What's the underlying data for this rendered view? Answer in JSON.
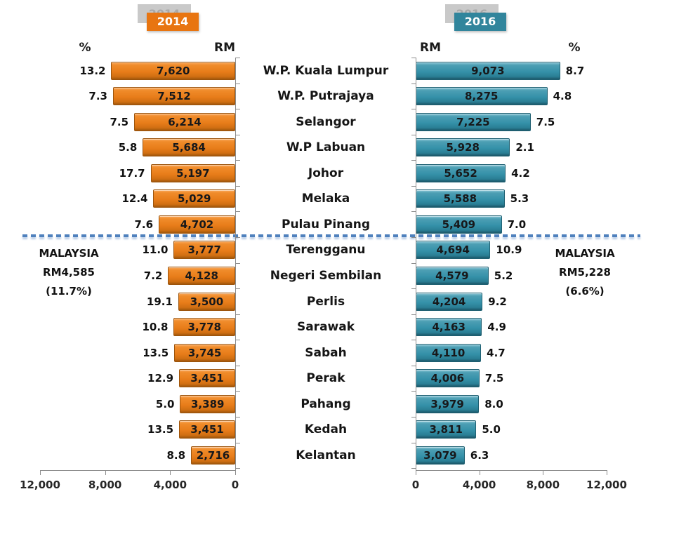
{
  "title_badges": {
    "left": {
      "label": "2014",
      "shadow_label": "2014",
      "color": "#E87511"
    },
    "right": {
      "label": "2016",
      "shadow_label": "2016",
      "color": "#31859C"
    }
  },
  "column_headers": {
    "left_pct": "%",
    "left_rm": "RM",
    "right_rm": "RM",
    "right_pct": "%"
  },
  "annotations": {
    "left": {
      "lines": [
        "MALAYSIA",
        "RM4,585",
        "(11.7%)"
      ]
    },
    "right": {
      "lines": [
        "MALAYSIA",
        "RM5,228",
        "(6.6%)"
      ]
    }
  },
  "colors": {
    "bar_2014": "#E87D1E",
    "bar_2016": "#3591A9",
    "divider": "#4F81BD",
    "axis": "#8C8C8C"
  },
  "chart_data": {
    "type": "bar",
    "layout": "tornado",
    "categories": [
      "W.P. Kuala Lumpur",
      "W.P. Putrajaya",
      "Selangor",
      "W.P Labuan",
      "Johor",
      "Melaka",
      "Pulau Pinang",
      "Terengganu",
      "Negeri Sembilan",
      "Perlis",
      "Sarawak",
      "Sabah",
      "Perak",
      "Pahang",
      "Kedah",
      "Kelantan"
    ],
    "series": [
      {
        "name": "2014",
        "side": "left",
        "color": "#E87D1E",
        "values": [
          7620,
          7512,
          6214,
          5684,
          5197,
          5029,
          4702,
          3777,
          4128,
          3500,
          3778,
          3745,
          3451,
          3389,
          3451,
          2716
        ],
        "value_labels": [
          "7,620",
          "7,512",
          "6,214",
          "5,684",
          "5,197",
          "5,029",
          "4,702",
          "3,777",
          "4,128",
          "3,500",
          "3,778",
          "3,745",
          "3,451",
          "3,389",
          "3,451",
          "2,716"
        ],
        "pct_values": [
          13.2,
          7.3,
          7.5,
          5.8,
          17.7,
          12.4,
          7.6,
          11.0,
          7.2,
          19.1,
          10.8,
          13.5,
          12.9,
          5.0,
          13.5,
          8.8
        ],
        "pct_labels": [
          "13.2",
          "7.3",
          "7.5",
          "5.8",
          "17.7",
          "12.4",
          "7.6",
          "11.0",
          "7.2",
          "19.1",
          "10.8",
          "13.5",
          "12.9",
          "5.0",
          "13.5",
          "8.8"
        ]
      },
      {
        "name": "2016",
        "side": "right",
        "color": "#3591A9",
        "values": [
          9073,
          8275,
          7225,
          5928,
          5652,
          5588,
          5409,
          4694,
          4579,
          4204,
          4163,
          4110,
          4006,
          3979,
          3811,
          3079
        ],
        "value_labels": [
          "9,073",
          "8,275",
          "7,225",
          "5,928",
          "5,652",
          "5,588",
          "5,409",
          "4,694",
          "4,579",
          "4,204",
          "4,163",
          "4,110",
          "4,006",
          "3,979",
          "3,811",
          "3,079"
        ],
        "pct_values": [
          8.7,
          4.8,
          7.5,
          2.1,
          4.2,
          5.3,
          7.0,
          10.9,
          5.2,
          9.2,
          4.9,
          4.7,
          7.5,
          8.0,
          5.0,
          6.3
        ],
        "pct_labels": [
          "8.7",
          "4.8",
          "7.5",
          "2.1",
          "4.2",
          "5.3",
          "7.0",
          "10.9",
          "5.2",
          "9.2",
          "4.9",
          "4.7",
          "7.5",
          "8.0",
          "5.0",
          "6.3"
        ]
      }
    ],
    "xlim": [
      0,
      12000
    ],
    "axis_ticks": {
      "values": [
        0,
        4000,
        8000,
        12000
      ],
      "left_labels": [
        "12,000",
        "8,000",
        "4,000",
        "0"
      ],
      "right_labels": [
        "0",
        "4,000",
        "8,000",
        "12,000"
      ]
    },
    "divider_after_category": "Pulau Pinang",
    "unit_currency": "RM",
    "unit_pct": "%",
    "national_average": {
      "2014": {
        "rm": "RM4,585",
        "pct": "(11.7%)"
      },
      "2016": {
        "rm": "RM5,228",
        "pct": "(6.6%)"
      }
    }
  }
}
